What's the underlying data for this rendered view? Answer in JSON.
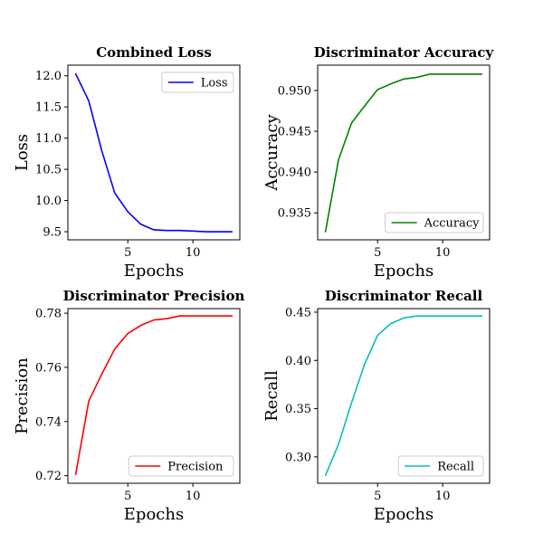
{
  "chart_data": [
    {
      "type": "line",
      "title": "Combined Loss",
      "xlabel": "Epochs",
      "ylabel": "Loss",
      "x": [
        1,
        2,
        3,
        4,
        5,
        6,
        7,
        8,
        9,
        10,
        11,
        12,
        13
      ],
      "xlim": [
        0.4,
        13.6
      ],
      "ylim": [
        9.37,
        12.17
      ],
      "xticks": [
        5,
        10
      ],
      "yticks": [
        9.5,
        10.0,
        10.5,
        11.0,
        11.5,
        12.0
      ],
      "ytick_labels": [
        "9.5",
        "10.0",
        "10.5",
        "11.0",
        "11.5",
        "12.0"
      ],
      "grid": false,
      "legend_position": "upper-right",
      "series": [
        {
          "name": "Loss",
          "color": "#0000ff",
          "values": [
            12.03,
            11.6,
            10.8,
            10.12,
            9.82,
            9.62,
            9.53,
            9.52,
            9.52,
            9.51,
            9.5,
            9.5,
            9.5
          ]
        }
      ]
    },
    {
      "type": "line",
      "title": "Discriminator Accuracy",
      "xlabel": "Epochs",
      "ylabel": "Accuracy",
      "x": [
        1,
        2,
        3,
        4,
        5,
        6,
        7,
        8,
        9,
        10,
        11,
        12,
        13
      ],
      "xlim": [
        0.4,
        13.6
      ],
      "ylim": [
        0.9317,
        0.9531
      ],
      "xticks": [
        5,
        10
      ],
      "yticks": [
        0.935,
        0.94,
        0.945,
        0.95
      ],
      "ytick_labels": [
        "0.935",
        "0.940",
        "0.945",
        "0.950"
      ],
      "grid": false,
      "legend_position": "lower-right",
      "series": [
        {
          "name": "Accuracy",
          "color": "#008000",
          "values": [
            0.9327,
            0.9415,
            0.946,
            0.9481,
            0.9501,
            0.9508,
            0.9514,
            0.9516,
            0.952,
            0.952,
            0.952,
            0.952,
            0.952
          ]
        }
      ]
    },
    {
      "type": "line",
      "title": "Discriminator Precision",
      "xlabel": "Epochs",
      "ylabel": "Precision",
      "x": [
        1,
        2,
        3,
        4,
        5,
        6,
        7,
        8,
        9,
        10,
        11,
        12,
        13
      ],
      "xlim": [
        0.4,
        13.6
      ],
      "ylim": [
        0.7172,
        0.7817
      ],
      "xticks": [
        5,
        10
      ],
      "yticks": [
        0.72,
        0.74,
        0.76,
        0.78
      ],
      "ytick_labels": [
        "0.72",
        "0.74",
        "0.76",
        "0.78"
      ],
      "grid": false,
      "legend_position": "lower-right",
      "series": [
        {
          "name": "Precision",
          "color": "#ff0000",
          "values": [
            0.7205,
            0.7475,
            0.7575,
            0.7668,
            0.7725,
            0.7755,
            0.7775,
            0.778,
            0.779,
            0.779,
            0.779,
            0.779,
            0.779
          ]
        }
      ]
    },
    {
      "type": "line",
      "title": "Discriminator Recall",
      "xlabel": "Epochs",
      "ylabel": "Recall",
      "x": [
        1,
        2,
        3,
        4,
        5,
        6,
        7,
        8,
        9,
        10,
        11,
        12,
        13
      ],
      "xlim": [
        0.4,
        13.6
      ],
      "ylim": [
        0.2727,
        0.4537
      ],
      "xticks": [
        5,
        10
      ],
      "yticks": [
        0.3,
        0.35,
        0.4,
        0.45
      ],
      "ytick_labels": [
        "0.30",
        "0.35",
        "0.40",
        "0.45"
      ],
      "grid": false,
      "legend_position": "lower-right",
      "series": [
        {
          "name": "Recall",
          "color": "#00bfbf",
          "values": [
            0.281,
            0.313,
            0.356,
            0.396,
            0.426,
            0.438,
            0.444,
            0.446,
            0.446,
            0.446,
            0.446,
            0.446,
            0.446
          ]
        }
      ]
    }
  ]
}
